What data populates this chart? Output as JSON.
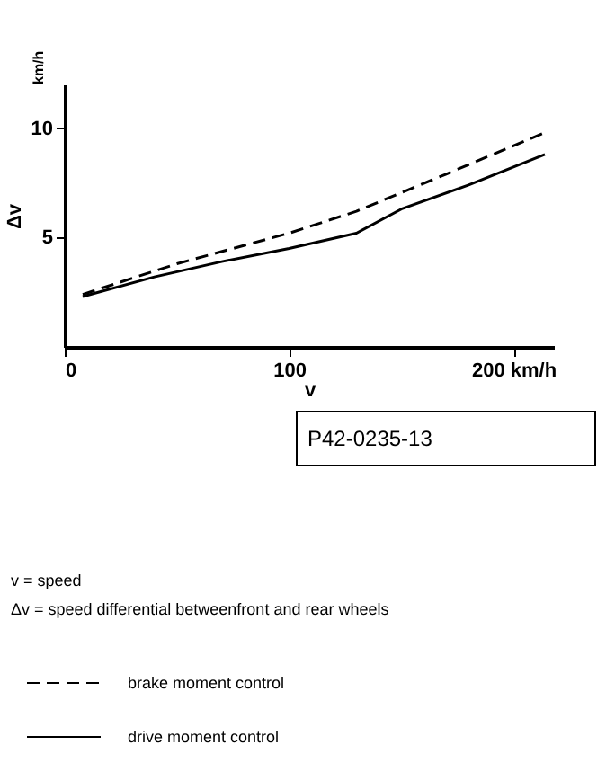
{
  "chart_data": {
    "type": "line",
    "xlabel": "v",
    "ylabel": "Δv",
    "xlim": [
      0,
      218
    ],
    "ylim": [
      0,
      12
    ],
    "xticks": [
      0,
      100,
      {
        "value": 200,
        "label": "200 km/h"
      }
    ],
    "yticks": [
      5,
      10
    ],
    "grid": false,
    "legend": "bottom",
    "marker": "none",
    "series": [
      {
        "name": "brake moment control",
        "color": "#000000",
        "line_style": "dashed",
        "x": [
          8,
          50,
          100,
          130,
          170,
          214
        ],
        "values": [
          2.4,
          3.8,
          5.2,
          6.2,
          7.9,
          9.8
        ]
      },
      {
        "name": "drive moment control",
        "color": "#000000",
        "line_style": "solid",
        "x": [
          8,
          40,
          70,
          100,
          130,
          150,
          180,
          214
        ],
        "values": [
          2.3,
          3.2,
          3.9,
          4.5,
          5.2,
          6.3,
          7.4,
          8.8
        ]
      }
    ],
    "annotations": [
      "P42-0235-13",
      "km/h",
      "v     =     speed",
      "Δv   =     speed differential betweenfront and rear wheels"
    ]
  }
}
